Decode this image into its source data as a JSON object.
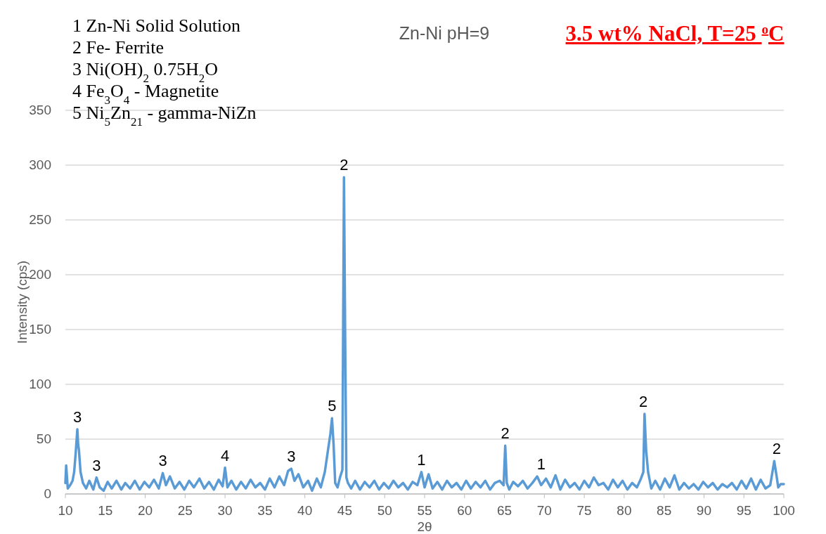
{
  "chart_data": {
    "type": "line",
    "title": "Zn-Ni pH=9",
    "subtitle": "3.5 wt% NaCl, T=25 $^{o}$C",
    "xlabel": "2θ",
    "ylabel": "Intensity (cps)",
    "xlim": [
      10,
      100
    ],
    "xticks": [
      10,
      15,
      20,
      25,
      30,
      35,
      40,
      45,
      50,
      55,
      60,
      65,
      70,
      75,
      80,
      85,
      90,
      95,
      100
    ],
    "ylim": [
      0,
      350
    ],
    "yticks": [
      0,
      50,
      100,
      150,
      200,
      250,
      300,
      350
    ],
    "grid": "y",
    "marker": "none",
    "line_style": "solid",
    "series": [
      {
        "color": "#5b9bd5",
        "x": [
          10,
          10.1,
          10.3,
          10.6,
          10.9,
          11.1,
          11.3,
          11.5,
          11.6,
          11.7,
          11.9,
          12.2,
          12.6,
          13.0,
          13.5,
          13.9,
          14.3,
          14.8,
          15.3,
          15.8,
          16.4,
          17.0,
          17.5,
          18.1,
          18.7,
          19.3,
          19.9,
          20.5,
          21.1,
          21.7,
          22.2,
          22.6,
          23.1,
          23.7,
          24.3,
          24.9,
          25.5,
          26.1,
          26.8,
          27.4,
          28.0,
          28.6,
          29.2,
          29.7,
          30.0,
          30.3,
          30.8,
          31.4,
          32.0,
          32.6,
          33.2,
          33.8,
          34.4,
          35.0,
          35.6,
          36.2,
          36.8,
          37.4,
          37.9,
          38.3,
          38.7,
          39.2,
          39.8,
          40.4,
          40.9,
          41.5,
          42.0,
          42.5,
          42.9,
          43.2,
          43.4,
          43.6,
          43.8,
          44.1,
          44.4,
          44.7,
          44.9,
          45.05,
          45.2,
          45.4,
          45.8,
          46.3,
          46.9,
          47.5,
          48.1,
          48.7,
          49.3,
          49.9,
          50.5,
          51.1,
          51.7,
          52.3,
          52.9,
          53.5,
          54.1,
          54.6,
          55.0,
          55.5,
          56.0,
          56.6,
          57.2,
          57.8,
          58.4,
          59.0,
          59.6,
          60.2,
          60.8,
          61.4,
          62.0,
          62.6,
          63.2,
          63.8,
          64.4,
          64.9,
          65.1,
          65.3,
          65.6,
          66.1,
          66.7,
          67.3,
          67.9,
          68.5,
          69.1,
          69.6,
          70.2,
          70.8,
          71.4,
          72.0,
          72.6,
          73.2,
          73.8,
          74.4,
          75.0,
          75.6,
          76.2,
          76.8,
          77.4,
          78.0,
          78.6,
          79.2,
          79.8,
          80.4,
          81.0,
          81.6,
          82.1,
          82.4,
          82.55,
          82.75,
          83.0,
          83.4,
          83.9,
          84.5,
          85.1,
          85.7,
          86.3,
          86.9,
          87.5,
          88.1,
          88.7,
          89.3,
          89.9,
          90.5,
          91.1,
          91.7,
          92.3,
          92.9,
          93.5,
          94.1,
          94.7,
          95.3,
          95.9,
          96.5,
          97.1,
          97.7,
          98.3,
          98.8,
          99.1,
          99.3,
          99.6,
          100
        ],
        "values": [
          10,
          26,
          5,
          8,
          12,
          20,
          38,
          59,
          45,
          40,
          20,
          10,
          5,
          12,
          4,
          15,
          6,
          3,
          11,
          5,
          12,
          4,
          10,
          5,
          12,
          4,
          11,
          6,
          13,
          5,
          19,
          8,
          16,
          5,
          11,
          4,
          12,
          6,
          14,
          5,
          11,
          4,
          13,
          7,
          24,
          6,
          12,
          4,
          11,
          5,
          13,
          6,
          10,
          4,
          14,
          6,
          16,
          8,
          21,
          23,
          12,
          18,
          6,
          12,
          3,
          14,
          6,
          20,
          40,
          55,
          69,
          45,
          10,
          6,
          15,
          22,
          289,
          142,
          15,
          10,
          5,
          12,
          4,
          11,
          6,
          12,
          4,
          10,
          5,
          12,
          6,
          10,
          4,
          11,
          8,
          20,
          6,
          18,
          5,
          11,
          4,
          12,
          6,
          10,
          4,
          12,
          5,
          11,
          6,
          12,
          4,
          10,
          12,
          8,
          44,
          10,
          4,
          11,
          7,
          12,
          5,
          10,
          16,
          8,
          14,
          6,
          17,
          4,
          13,
          6,
          10,
          4,
          12,
          6,
          15,
          8,
          10,
          4,
          13,
          6,
          12,
          4,
          10,
          6,
          14,
          20,
          73,
          40,
          20,
          5,
          12,
          4,
          14,
          6,
          17,
          4,
          10,
          5,
          9,
          4,
          11,
          6,
          10,
          4,
          9,
          6,
          10,
          4,
          12,
          5,
          14,
          4,
          13,
          5,
          8,
          30,
          16,
          6,
          9,
          9
        ]
      }
    ],
    "annotations": [
      "1 Zn-Ni Solid Solution",
      "2 Fe- Ferrite",
      "3 Ni(OH)$_{2}$ 0.75H$_{2}$O",
      "4 Fe$_{3}$O$_{4}$ - Magnetite",
      "5 Ni$_{5}$Zn$_{21}$ - gamma-NiZn",
      {
        "text": "3",
        "x": 11.5,
        "y": 59
      },
      {
        "text": "3",
        "x": 13.9,
        "y": 15
      },
      {
        "text": "3",
        "x": 22.2,
        "y": 19
      },
      {
        "text": "4",
        "x": 30,
        "y": 24
      },
      {
        "text": "3",
        "x": 38.3,
        "y": 23
      },
      {
        "text": "5",
        "x": 43.4,
        "y": 69
      },
      {
        "text": "2",
        "x": 44.9,
        "y": 289
      },
      {
        "text": "1",
        "x": 54.6,
        "y": 20
      },
      {
        "text": "2",
        "x": 65.1,
        "y": 44
      },
      {
        "text": "1",
        "x": 69.6,
        "y": 16
      },
      {
        "text": "2",
        "x": 82.4,
        "y": 73
      },
      {
        "text": "2",
        "x": 99.1,
        "y": 30
      }
    ]
  }
}
